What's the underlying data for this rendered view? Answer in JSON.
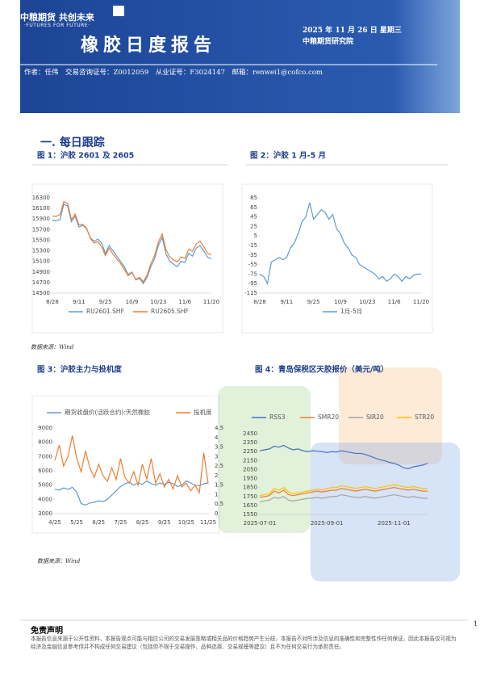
{
  "header": {
    "logo": "中粮期货 共创未来",
    "slogan": "·FUTURES FOR FUTURE·",
    "title": "橡胶日度报告",
    "date": "2025 年 11 月 26 日 星期三",
    "institute": "中粮期货研究院",
    "author": "作者：任伟　交易咨询证号：Z0012059　从业证号：F3024147　邮箱：renwei1@cofco.com"
  },
  "section": "一. 每日跟踪",
  "sources": [
    "数据来源：Wind",
    "数据来源：Wind"
  ],
  "disclaimer": {
    "title": "免责声明",
    "text": "本报告信息来源于公开性资料，本报告观点可能与相应公司的交易发展策略或相关品的价格趋势产生分歧，本报告不对所涉及信息的准确性和完整性作任何保证，因此本报告仅可视为经济及金融信息参考但并不构成任何交易建议（包括但不限于交易操作、品种选择、交易规模等建议）且不为任何交易行为承担责任。"
  },
  "page_number": "1",
  "chart_data": [
    {
      "type": "line",
      "title": "图 1：沪胶 2601 及 2605",
      "legend": "bottom",
      "categories": [
        "8/28",
        null,
        null,
        null,
        null,
        null,
        null,
        "9/11",
        null,
        null,
        null,
        null,
        null,
        null,
        "9/25",
        null,
        null,
        null,
        null,
        null,
        null,
        "10/9",
        null,
        null,
        null,
        null,
        null,
        null,
        "10/23",
        null,
        null,
        null,
        null,
        null,
        null,
        "11/6",
        null,
        null,
        null,
        null,
        null,
        null,
        "11/20"
      ],
      "ylim": [
        14500,
        16300
      ],
      "yticks": [
        14500,
        14700,
        14900,
        15100,
        15300,
        15500,
        15700,
        15900,
        16100,
        16300
      ],
      "series": [
        {
          "name": "RU2601.SHF",
          "color": "#5b9bd5",
          "values": [
            15880,
            15870,
            15890,
            16180,
            16150,
            15850,
            15950,
            15750,
            15780,
            15720,
            15550,
            15480,
            15520,
            15450,
            15250,
            15400,
            15300,
            15200,
            15100,
            15000,
            14850,
            14900,
            14750,
            14780,
            14680,
            14800,
            15000,
            15150,
            15400,
            15550,
            15250,
            15100,
            15050,
            15000,
            15100,
            15080,
            15250,
            15200,
            15350,
            15400,
            15300,
            15180,
            15150
          ]
        },
        {
          "name": "RU2605.SHF",
          "color": "#ed7d31",
          "values": [
            15955,
            15950,
            15985,
            16230,
            16195,
            15890,
            15995,
            15790,
            15800,
            15730,
            15540,
            15445,
            15475,
            15375,
            15210,
            15350,
            15240,
            15145,
            15060,
            14950,
            14830,
            14890,
            14760,
            14800,
            14715,
            14840,
            15055,
            15210,
            15465,
            15620,
            15325,
            15185,
            15130,
            15090,
            15185,
            15155,
            15330,
            15290,
            15430,
            15485,
            15378,
            15255,
            15225
          ]
        }
      ]
    },
    {
      "type": "line",
      "title": "图 2：沪胶 1 月-5 月",
      "legend": "bottom",
      "categories": [
        "8/28",
        null,
        null,
        null,
        null,
        null,
        null,
        "9/11",
        null,
        null,
        null,
        null,
        null,
        null,
        "9/25",
        null,
        null,
        null,
        null,
        null,
        null,
        "10/9",
        null,
        null,
        null,
        null,
        null,
        null,
        "10/23",
        null,
        null,
        null,
        null,
        null,
        null,
        "11/6",
        null,
        null,
        null,
        null,
        null,
        null,
        "11/20"
      ],
      "ylim": [
        -115,
        85
      ],
      "yticks": [
        -115,
        -95,
        -75,
        -55,
        -35,
        -15,
        5,
        25,
        45,
        65,
        85
      ],
      "series": [
        {
          "name": "1月-5月",
          "color": "#5b9bd5",
          "values": [
            -75,
            -80,
            -95,
            -50,
            -45,
            -40,
            -45,
            -40,
            -20,
            -10,
            10,
            35,
            45,
            75,
            40,
            50,
            60,
            55,
            40,
            50,
            20,
            10,
            -10,
            -20,
            -35,
            -40,
            -55,
            -60,
            -65,
            -70,
            -75,
            -85,
            -80,
            -90,
            -85,
            -75,
            -80,
            -90,
            -80,
            -85,
            -78,
            -75,
            -75
          ]
        }
      ]
    },
    {
      "type": "line",
      "title": "图 3：沪胶主力与投机度",
      "legend": "top",
      "categories": [
        "4/25",
        null,
        null,
        null,
        null,
        "5/25",
        null,
        null,
        null,
        null,
        "6/25",
        null,
        null,
        null,
        null,
        "7/25",
        null,
        null,
        null,
        null,
        "8/25",
        null,
        null,
        null,
        null,
        "9/25",
        null,
        null,
        null,
        null,
        "10/25",
        null,
        null,
        null,
        null,
        "11/25"
      ],
      "ylim": [
        3000,
        9000
      ],
      "yticks": [
        3000,
        4000,
        5000,
        6000,
        7000,
        8000,
        9000
      ],
      "y2lim": [
        0,
        4.5
      ],
      "y2ticks": [
        0,
        0.5,
        1,
        1.5,
        2,
        2.5,
        3,
        3.5,
        4,
        4.5
      ],
      "series": [
        {
          "name": "期货收盘价(活跃合约):天然橡胶",
          "color": "#5b9bd5",
          "values": [
            4700,
            4650,
            4800,
            4700,
            4850,
            4500,
            3700,
            3600,
            3750,
            3800,
            3900,
            3850,
            4000,
            4300,
            4600,
            4900,
            5100,
            5200,
            5000,
            5150,
            5050,
            5300,
            5100,
            5000,
            5150,
            5050,
            5200,
            5100,
            4900,
            5000,
            5300,
            5150,
            5000,
            4950,
            5100,
            5150
          ]
        },
        {
          "name": "投机度",
          "color": "#ed7d31",
          "axis": "y2",
          "values": [
            2.8,
            3.6,
            2.5,
            3.0,
            4.1,
            2.9,
            2.2,
            3.3,
            2.4,
            1.9,
            2.6,
            2.0,
            1.7,
            2.4,
            1.8,
            2.9,
            1.9,
            1.6,
            2.2,
            1.5,
            2.6,
            1.8,
            2.9,
            1.6,
            2.1,
            1.4,
            1.8,
            1.3,
            2.0,
            1.4,
            1.6,
            1.2,
            1.5,
            1.1,
            3.2,
            1.6
          ]
        }
      ]
    },
    {
      "type": "line",
      "title": "图 4：青岛保税区天胶报价（美元/吨）",
      "legend": "top",
      "categories": [
        "2025-07-01",
        null,
        null,
        null,
        null,
        null,
        null,
        null,
        null,
        null,
        null,
        null,
        null,
        null,
        "2025-09-01",
        null,
        null,
        null,
        null,
        null,
        null,
        null,
        null,
        null,
        null,
        null,
        null,
        null,
        "2025-11-01",
        null,
        null,
        null,
        null,
        null,
        null,
        null
      ],
      "ylim": [
        1550,
        2450
      ],
      "yticks": [
        1550,
        1650,
        1750,
        1850,
        1950,
        2050,
        2150,
        2250,
        2350,
        2450
      ],
      "series": [
        {
          "name": "RSS3",
          "color": "#4472c4",
          "values": [
            2260,
            2270,
            2280,
            2310,
            2300,
            2320,
            2290,
            2270,
            2280,
            2260,
            2250,
            2260,
            2255,
            2250,
            2240,
            2250,
            2245,
            2260,
            2250,
            2240,
            2230,
            2230,
            2220,
            2200,
            2180,
            2160,
            2150,
            2130,
            2120,
            2100,
            2070,
            2060,
            2080,
            2090,
            2100,
            2120
          ]
        },
        {
          "name": "SMR20",
          "color": "#ed7d31",
          "values": [
            1740,
            1750,
            1760,
            1810,
            1790,
            1820,
            1770,
            1760,
            1770,
            1780,
            1790,
            1800,
            1810,
            1800,
            1810,
            1820,
            1820,
            1840,
            1830,
            1820,
            1810,
            1820,
            1830,
            1820,
            1810,
            1820,
            1830,
            1840,
            1850,
            1840,
            1830,
            1820,
            1830,
            1820,
            1810,
            1810
          ]
        },
        {
          "name": "SIR20",
          "color": "#a5a5a5",
          "values": [
            1690,
            1700,
            1710,
            1740,
            1730,
            1750,
            1710,
            1700,
            1710,
            1720,
            1730,
            1730,
            1740,
            1730,
            1740,
            1750,
            1750,
            1770,
            1760,
            1750,
            1740,
            1740,
            1750,
            1740,
            1730,
            1740,
            1750,
            1760,
            1770,
            1760,
            1750,
            1740,
            1750,
            1740,
            1730,
            1730
          ]
        },
        {
          "name": "STR20",
          "color": "#ffc000",
          "values": [
            1760,
            1770,
            1780,
            1840,
            1820,
            1850,
            1800,
            1780,
            1790,
            1800,
            1810,
            1820,
            1830,
            1820,
            1840,
            1850,
            1850,
            1870,
            1860,
            1850,
            1840,
            1850,
            1860,
            1850,
            1840,
            1850,
            1860,
            1870,
            1880,
            1870,
            1860,
            1850,
            1860,
            1850,
            1840,
            1840
          ]
        }
      ]
    }
  ]
}
